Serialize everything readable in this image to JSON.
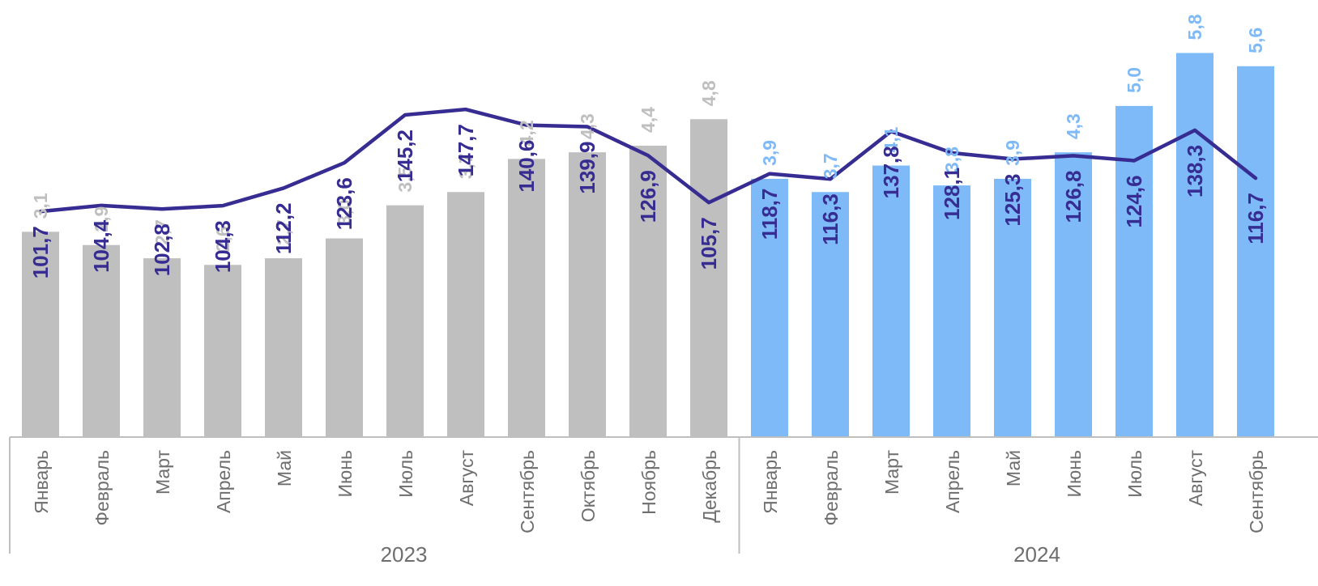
{
  "chart_data": {
    "type": "bar",
    "categories": [
      "Январь",
      "Февраль",
      "Март",
      "Апрель",
      "Май",
      "Июнь",
      "Июль",
      "Август",
      "Сентябрь",
      "Октябрь",
      "Ноябрь",
      "Декабрь",
      "Январь",
      "Февраль",
      "Март",
      "Апрель",
      "Май",
      "Июнь",
      "Июль",
      "Август",
      "Сентябрь"
    ],
    "groups": [
      {
        "label": "2023",
        "count": 12
      },
      {
        "label": "2024",
        "count": 9
      }
    ],
    "series": [
      {
        "type": "bar",
        "values": [
          3.1,
          2.9,
          2.7,
          2.6,
          2.7,
          3.0,
          3.5,
          3.7,
          4.2,
          4.3,
          4.4,
          4.8,
          3.9,
          3.7,
          4.1,
          3.8,
          3.9,
          4.3,
          5.0,
          5.8,
          5.6
        ],
        "labels": [
          "3,1",
          "2,9",
          "2,7",
          "2,6",
          "2,7",
          "3,0",
          "3,5",
          "3,7",
          "4,2",
          "4,3",
          "4,4",
          "4,8",
          "3,9",
          "3,7",
          "4,1",
          "3,8",
          "3,9",
          "4,3",
          "5,0",
          "5,8",
          "5,6"
        ]
      },
      {
        "type": "line",
        "values": [
          101.7,
          104.4,
          102.8,
          104.3,
          112.2,
          123.6,
          145.2,
          147.7,
          140.6,
          139.9,
          126.9,
          105.7,
          118.7,
          116.3,
          137.8,
          128.1,
          125.3,
          126.8,
          124.6,
          138.3,
          116.7
        ],
        "labels": [
          "101,7",
          "104,4",
          "102,8",
          "104,3",
          "112,2",
          "123,6",
          "145,2",
          "147,7",
          "140,6",
          "139,9",
          "126,9",
          "105,7",
          "118,7",
          "116,3",
          "137,8",
          "128,1",
          "125,3",
          "126,8",
          "124,6",
          "138,3",
          "116,7"
        ]
      }
    ],
    "bar_ylim": [
      0,
      6.6
    ],
    "line_ylim": [
      0,
      197
    ],
    "colors": {
      "bars_2023": "#bfbfbf",
      "bars_2024": "#7ebaf8",
      "line": "#362c91",
      "bar_labels_2023": "#bfbfbf",
      "bar_labels_2024": "#7ebaf8",
      "line_labels": "#362c91",
      "axis": "#bfbfbf",
      "tick_labels": "#6e6e6e"
    },
    "grid": false,
    "legend": "none"
  }
}
